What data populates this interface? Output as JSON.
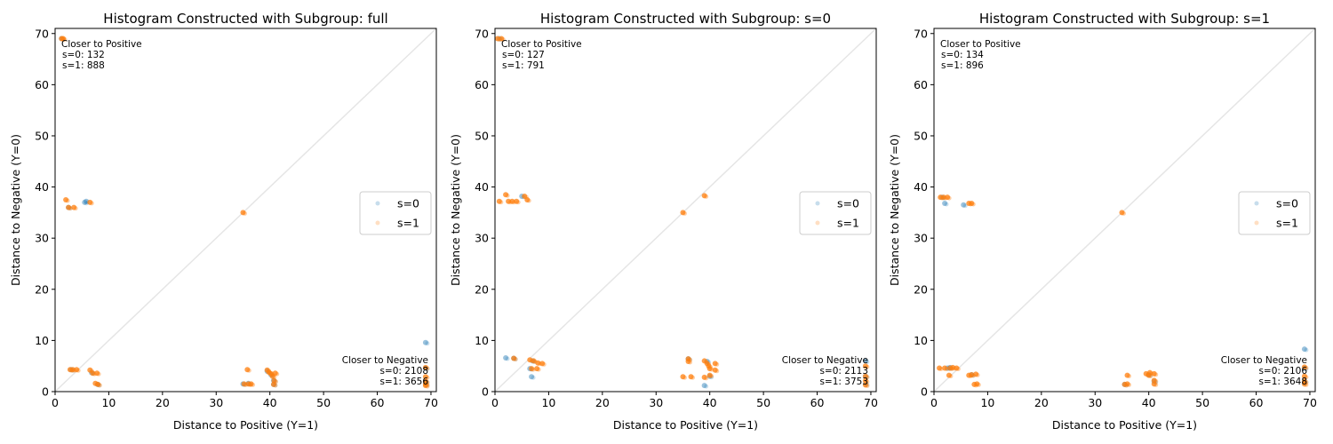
{
  "chart_data": [
    {
      "type": "scatter",
      "title": "Histogram Constructed with Subgroup: full",
      "xlabel": "Distance to Positive (Y=1)",
      "ylabel": "Distance to Negative (Y=0)",
      "xlim": [
        0,
        71
      ],
      "ylim": [
        0,
        71
      ],
      "xticks": [
        0,
        10,
        20,
        30,
        40,
        50,
        60,
        70
      ],
      "yticks": [
        0,
        10,
        20,
        30,
        40,
        50,
        60,
        70
      ],
      "diagonal": true,
      "legend_position": "center-right",
      "legend": [
        "s=0",
        "s=1"
      ],
      "annotations": {
        "closer_to_positive": [
          "Closer to Positive",
          "s=0: 132",
          "s=1: 888"
        ],
        "closer_to_negative": [
          "Closer to Negative",
          "s=0: 2108",
          "s=1: 3656"
        ]
      },
      "series": [
        {
          "name": "s=0",
          "color": "#1f77b4",
          "points": [
            [
              1.2,
              69.0
            ],
            [
              5.5,
              37.0
            ],
            [
              5.8,
              37.2
            ],
            [
              2.5,
              36.0
            ],
            [
              3.0,
              4.3
            ],
            [
              6.8,
              3.7
            ],
            [
              7.9,
              1.4
            ],
            [
              35.0,
              1.5
            ],
            [
              36.0,
              1.6
            ],
            [
              39.5,
              4.0
            ],
            [
              40.2,
              3.3
            ],
            [
              40.7,
              1.4
            ],
            [
              40.7,
              2.2
            ],
            [
              69.0,
              9.6
            ],
            [
              69.0,
              4.6
            ],
            [
              69.0,
              2.0
            ],
            [
              69.0,
              1.4
            ]
          ]
        },
        {
          "name": "s=1",
          "color": "#ff7f0e",
          "points": [
            [
              1.2,
              69.0
            ],
            [
              1.5,
              69.0
            ],
            [
              2.0,
              37.5
            ],
            [
              2.5,
              36.0
            ],
            [
              3.5,
              36.0
            ],
            [
              6.5,
              37.0
            ],
            [
              2.8,
              4.3
            ],
            [
              3.3,
              4.3
            ],
            [
              4.0,
              4.3
            ],
            [
              6.5,
              4.2
            ],
            [
              7.0,
              3.6
            ],
            [
              7.8,
              3.6
            ],
            [
              8.0,
              1.4
            ],
            [
              7.5,
              1.6
            ],
            [
              35.0,
              35.0
            ],
            [
              35.2,
              1.5
            ],
            [
              35.8,
              4.3
            ],
            [
              36.0,
              1.5
            ],
            [
              36.5,
              1.5
            ],
            [
              39.5,
              4.2
            ],
            [
              39.8,
              3.8
            ],
            [
              40.2,
              3.5
            ],
            [
              40.5,
              3.0
            ],
            [
              40.7,
              1.4
            ],
            [
              40.8,
              2.1
            ],
            [
              41.0,
              3.6
            ],
            [
              69.0,
              4.7
            ],
            [
              69.0,
              2.9
            ],
            [
              69.0,
              2.0
            ],
            [
              69.0,
              1.5
            ],
            [
              69.0,
              1.2
            ]
          ]
        }
      ]
    },
    {
      "type": "scatter",
      "title": "Histogram Constructed with Subgroup: s=0",
      "xlabel": "Distance to Positive (Y=1)",
      "ylabel": "Distance to Negative (Y=0)",
      "xlim": [
        0,
        71
      ],
      "ylim": [
        0,
        71
      ],
      "xticks": [
        0,
        10,
        20,
        30,
        40,
        50,
        60,
        70
      ],
      "yticks": [
        0,
        10,
        20,
        30,
        40,
        50,
        60,
        70
      ],
      "diagonal": true,
      "legend_position": "center-right",
      "legend": [
        "s=0",
        "s=1"
      ],
      "annotations": {
        "closer_to_positive": [
          "Closer to Positive",
          "s=0: 127",
          "s=1: 791"
        ],
        "closer_to_negative": [
          "Closer to Negative",
          "s=0: 2113",
          "s=1: 3753"
        ]
      },
      "series": [
        {
          "name": "s=0",
          "color": "#1f77b4",
          "points": [
            [
              0.8,
              69.0
            ],
            [
              5.0,
              38.2
            ],
            [
              2.0,
              6.6
            ],
            [
              3.5,
              6.5
            ],
            [
              7.0,
              6.0
            ],
            [
              6.5,
              4.5
            ],
            [
              6.8,
              2.9
            ],
            [
              36.0,
              6.4
            ],
            [
              39.0,
              1.2
            ],
            [
              39.5,
              5.9
            ],
            [
              40.0,
              3.0
            ],
            [
              69.0,
              6.0
            ],
            [
              69.0,
              3.0
            ],
            [
              69.0,
              1.5
            ]
          ]
        },
        {
          "name": "s=1",
          "color": "#ff7f0e",
          "points": [
            [
              0.5,
              69.0
            ],
            [
              1.2,
              69.0
            ],
            [
              0.8,
              37.2
            ],
            [
              2.0,
              38.5
            ],
            [
              2.5,
              37.2
            ],
            [
              3.2,
              37.2
            ],
            [
              4.0,
              37.2
            ],
            [
              5.5,
              38.2
            ],
            [
              6.0,
              37.5
            ],
            [
              3.5,
              6.5
            ],
            [
              6.5,
              6.2
            ],
            [
              7.2,
              6.0
            ],
            [
              8.0,
              5.6
            ],
            [
              8.8,
              5.5
            ],
            [
              6.8,
              4.5
            ],
            [
              7.8,
              4.5
            ],
            [
              35.0,
              35.0
            ],
            [
              39.0,
              38.3
            ],
            [
              35.0,
              2.9
            ],
            [
              36.0,
              6.4
            ],
            [
              36.0,
              5.9
            ],
            [
              36.5,
              2.9
            ],
            [
              39.0,
              6.0
            ],
            [
              39.5,
              5.5
            ],
            [
              39.8,
              5.0
            ],
            [
              40.0,
              4.5
            ],
            [
              40.0,
              3.2
            ],
            [
              39.0,
              2.8
            ],
            [
              41.0,
              5.5
            ],
            [
              41.0,
              4.2
            ],
            [
              69.0,
              5.0
            ],
            [
              69.0,
              3.0
            ],
            [
              69.0,
              2.1
            ],
            [
              69.0,
              1.3
            ]
          ]
        }
      ]
    },
    {
      "type": "scatter",
      "title": "Histogram Constructed with Subgroup: s=1",
      "xlabel": "Distance to Positive (Y=1)",
      "ylabel": "Distance to Negative (Y=0)",
      "xlim": [
        0,
        71
      ],
      "ylim": [
        0,
        71
      ],
      "xticks": [
        0,
        10,
        20,
        30,
        40,
        50,
        60,
        70
      ],
      "yticks": [
        0,
        10,
        20,
        30,
        40,
        50,
        60,
        70
      ],
      "diagonal": true,
      "legend_position": "center-right",
      "legend": [
        "s=0",
        "s=1"
      ],
      "annotations": {
        "closer_to_positive": [
          "Closer to Positive",
          "s=0: 134",
          "s=1: 896"
        ],
        "closer_to_negative": [
          "Closer to Negative",
          "s=0: 2106",
          "s=1: 3648"
        ]
      },
      "series": [
        {
          "name": "s=0",
          "color": "#1f77b4",
          "points": [
            [
              1.5,
              38.0
            ],
            [
              2.0,
              36.8
            ],
            [
              5.5,
              36.5
            ],
            [
              2.5,
              4.6
            ],
            [
              3.0,
              4.7
            ],
            [
              7.0,
              3.3
            ],
            [
              35.5,
              1.4
            ],
            [
              40.0,
              3.3
            ],
            [
              41.0,
              2.0
            ],
            [
              69.0,
              8.3
            ],
            [
              69.0,
              4.6
            ],
            [
              69.0,
              2.0
            ]
          ]
        },
        {
          "name": "s=1",
          "color": "#ff7f0e",
          "points": [
            [
              1.2,
              38.0
            ],
            [
              1.8,
              38.0
            ],
            [
              2.5,
              38.0
            ],
            [
              6.5,
              36.8
            ],
            [
              7.0,
              36.8
            ],
            [
              1.0,
              4.6
            ],
            [
              2.0,
              4.6
            ],
            [
              3.0,
              4.6
            ],
            [
              3.5,
              4.7
            ],
            [
              4.2,
              4.6
            ],
            [
              2.8,
              3.2
            ],
            [
              6.5,
              3.2
            ],
            [
              7.0,
              3.3
            ],
            [
              7.8,
              3.4
            ],
            [
              8.0,
              1.5
            ],
            [
              7.5,
              1.4
            ],
            [
              35.0,
              35.0
            ],
            [
              35.5,
              1.4
            ],
            [
              36.0,
              3.2
            ],
            [
              36.0,
              1.5
            ],
            [
              39.5,
              3.5
            ],
            [
              40.0,
              3.2
            ],
            [
              40.2,
              3.7
            ],
            [
              41.0,
              3.5
            ],
            [
              41.0,
              2.2
            ],
            [
              41.0,
              1.5
            ],
            [
              69.0,
              4.8
            ],
            [
              69.0,
              3.0
            ],
            [
              69.0,
              2.0
            ],
            [
              69.0,
              1.5
            ]
          ]
        }
      ]
    }
  ]
}
